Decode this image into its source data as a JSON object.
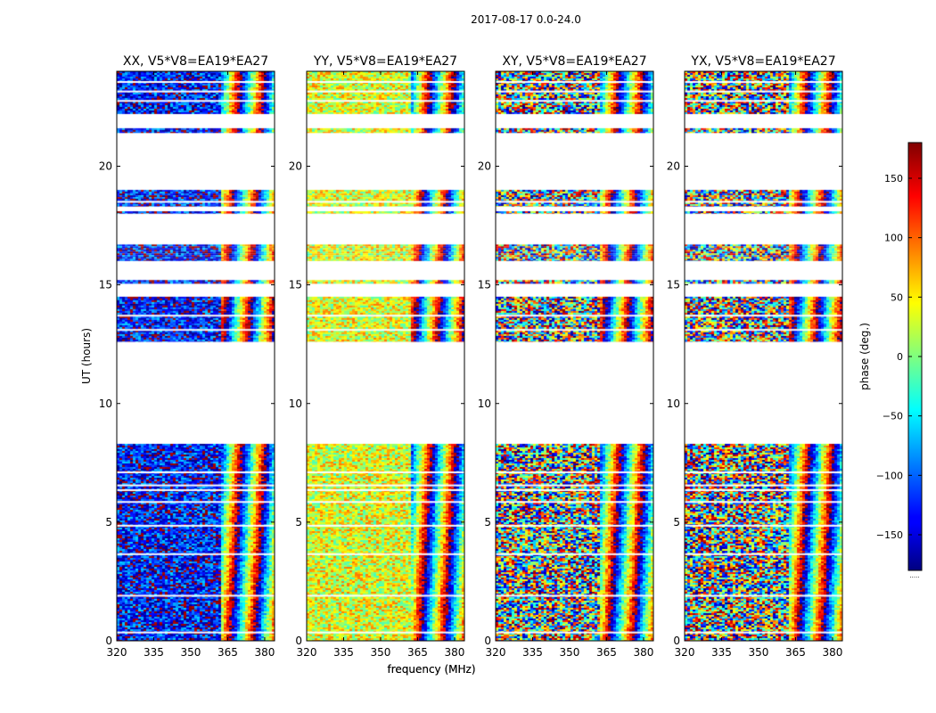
{
  "suptitle": "2017-08-17 0.0-24.0",
  "colormap": "jet",
  "chart_data": [
    {
      "type": "heatmap",
      "title": "XX, V5*V8=EA19*EA27",
      "xlabel": "frequency (MHz)",
      "ylabel": "UT (hours)",
      "xlim": [
        320,
        384
      ],
      "ylim": [
        0,
        24
      ],
      "xticks": [
        320,
        335,
        350,
        365,
        380
      ],
      "yticks": [
        0,
        5,
        10,
        15,
        20
      ],
      "base_phase": -130,
      "phase_noise": 70,
      "fringe_start_mhz": 362
    },
    {
      "type": "heatmap",
      "title": "YY, V5*V8=EA19*EA27",
      "xlabel": "frequency (MHz)",
      "ylabel": "",
      "xlim": [
        320,
        384
      ],
      "ylim": [
        0,
        24
      ],
      "xticks": [
        320,
        335,
        350,
        365,
        380
      ],
      "yticks": [
        0,
        5,
        10,
        15,
        20
      ],
      "base_phase": 35,
      "phase_noise": 60,
      "fringe_start_mhz": 362
    },
    {
      "type": "heatmap",
      "title": "XY, V5*V8=EA19*EA27",
      "xlabel": "",
      "ylabel": "",
      "xlim": [
        320,
        384
      ],
      "ylim": [
        0,
        24
      ],
      "xticks": [
        320,
        335,
        350,
        365,
        380
      ],
      "yticks": [
        0,
        5,
        10,
        15,
        20
      ],
      "base_phase": 0,
      "phase_noise": 180,
      "fringe_start_mhz": 362
    },
    {
      "type": "heatmap",
      "title": "YX, V5*V8=EA19*EA27",
      "xlabel": "",
      "ylabel": "",
      "xlim": [
        320,
        384
      ],
      "ylim": [
        0,
        24
      ],
      "xticks": [
        320,
        335,
        350,
        365,
        380
      ],
      "yticks": [
        0,
        5,
        10,
        15,
        20
      ],
      "base_phase": 0,
      "phase_noise": 180,
      "fringe_start_mhz": 362
    }
  ],
  "data_time_ranges_hours": [
    [
      0.0,
      8.3
    ],
    [
      12.6,
      14.5
    ],
    [
      15.05,
      15.2
    ],
    [
      16.0,
      16.7
    ],
    [
      18.0,
      18.1
    ],
    [
      18.3,
      19.0
    ],
    [
      21.4,
      21.6
    ],
    [
      22.2,
      24.0
    ]
  ],
  "gap_lines_hours": [
    0.35,
    1.9,
    3.65,
    4.85,
    5.85,
    6.35,
    6.55,
    7.1,
    13.1,
    13.7,
    18.5,
    22.75,
    23.15,
    23.55
  ],
  "colorbar": {
    "label": "phase (deg.)",
    "range": [
      -180,
      180
    ],
    "ticks": [
      150,
      100,
      50,
      0,
      -50,
      -100,
      -150
    ],
    "tick_labels": [
      "150",
      "100",
      "50",
      "0",
      "−50",
      "−100",
      "−150"
    ],
    "bottom_label": "....."
  }
}
